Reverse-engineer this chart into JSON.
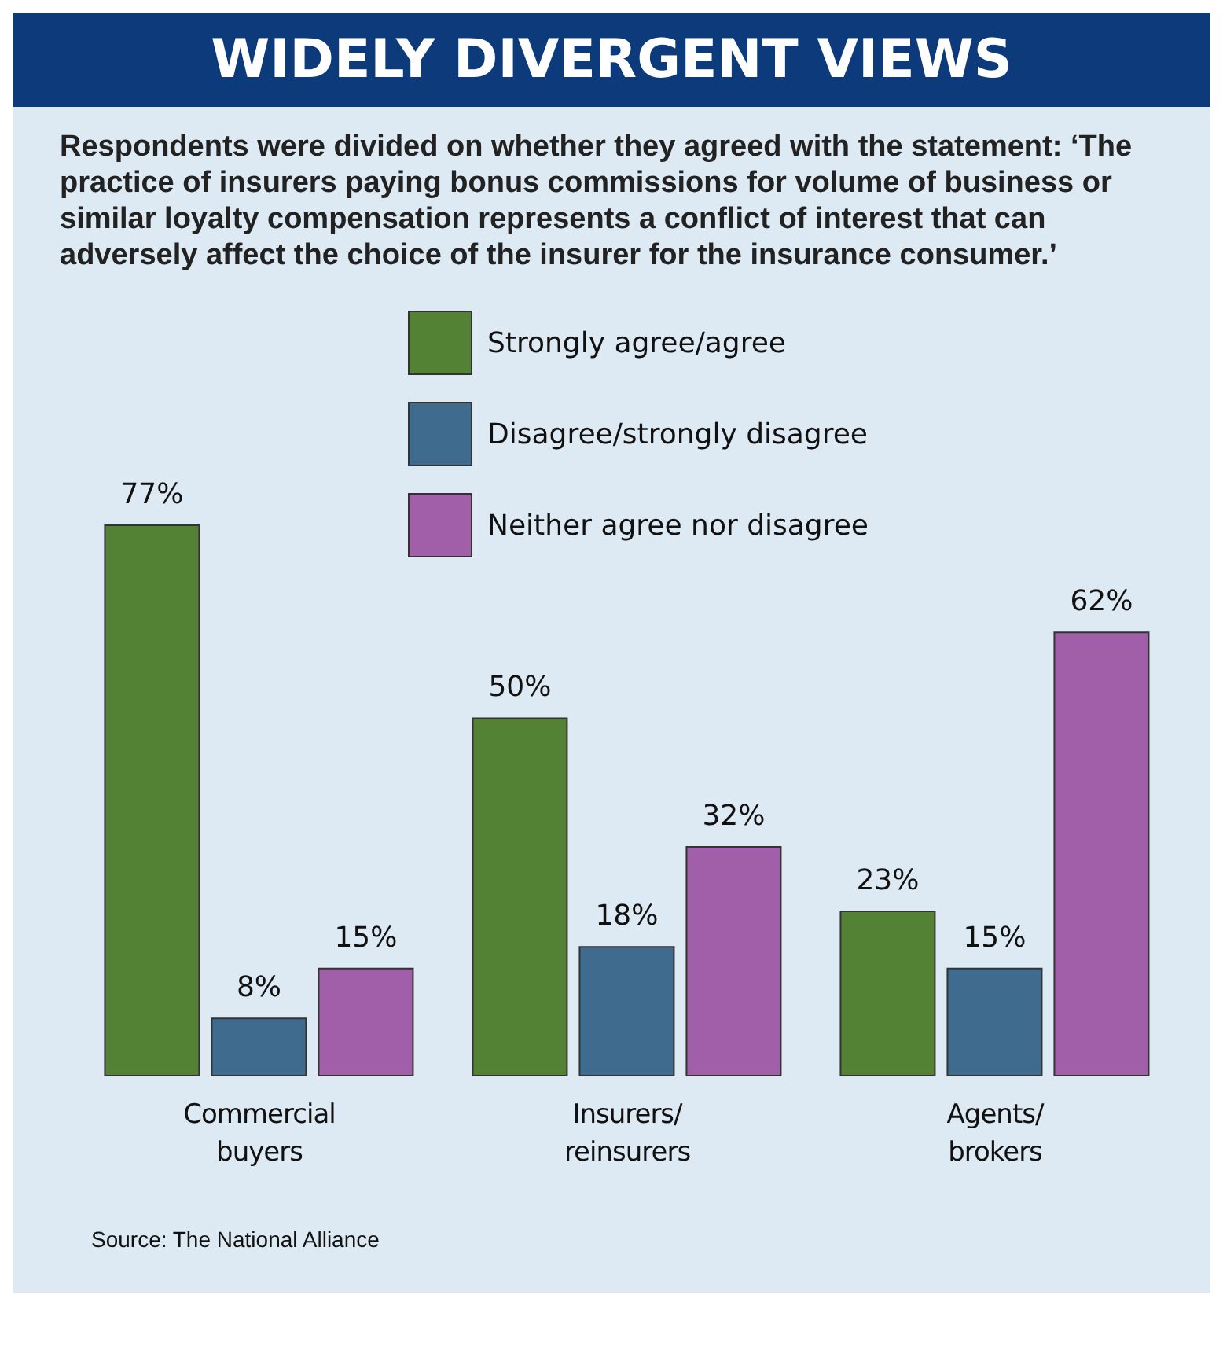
{
  "chart_data": {
    "type": "bar",
    "title": "WIDELY DIVERGENT VIEWS",
    "subtitle": "Respondents were divided on whether they agreed with the statement: ‘The practice of insurers paying bonus commissions for volume of business or similar loyalty compensation represents a conflict of interest that can adversely affect the choice of the insurer for the insurance consumer.’",
    "categories": [
      "Commercial buyers",
      "Insurers/ reinsurers",
      "Agents/ brokers"
    ],
    "series": [
      {
        "name": "Strongly agree/agree",
        "color": "#548235",
        "values": [
          77,
          50,
          23
        ],
        "value_labels": [
          "77%",
          "50%",
          "23%"
        ]
      },
      {
        "name": "Disagree/strongly disagree",
        "color": "#3e6b8e",
        "values": [
          8,
          18,
          15
        ],
        "value_labels": [
          "8%",
          "18%",
          "15%"
        ]
      },
      {
        "name": "Neither agree nor disagree",
        "color": "#a05fa8",
        "values": [
          15,
          32,
          62
        ],
        "value_labels": [
          "15%",
          "32%",
          "62%"
        ]
      }
    ],
    "legend": "top",
    "grid": false,
    "annotations": [
      "Source: The National Alliance"
    ]
  }
}
